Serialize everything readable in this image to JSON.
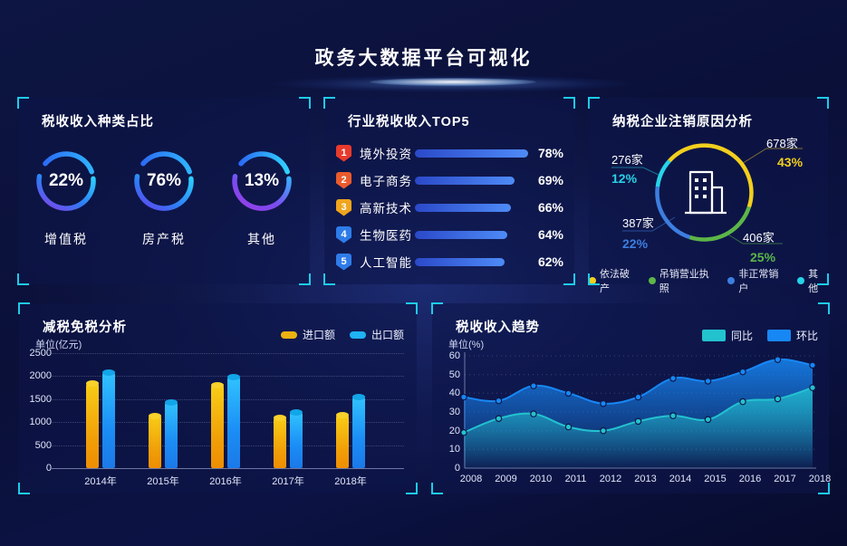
{
  "header": {
    "title": "政务大数据平台可视化"
  },
  "panels": {
    "tax_type": {
      "title": "税收收入种类占比"
    },
    "industry_top5": {
      "title": "行业税收收入TOP5"
    },
    "cancellation": {
      "title": "纳税企业注销原因分析"
    },
    "tax_reduction": {
      "title": "减税免税分析",
      "unit": "单位(亿元)",
      "y_ticks": [
        "2500",
        "2000",
        "1500",
        "1000",
        "500",
        "0"
      ]
    },
    "trend": {
      "title": "税收收入趋势",
      "unit": "单位(%)",
      "y_ticks": [
        "60",
        "50",
        "40",
        "30",
        "20",
        "10",
        "0"
      ]
    }
  },
  "colors": {
    "accent_cyan": "#1ecbe8",
    "ring_blue": "#2c6df5",
    "ring_cyan": "#2bd2ff",
    "ring_purple": "#8a3ce8",
    "bar_gradient_start": "#2b49c9",
    "bar_gradient_end": "#4e8bf7"
  },
  "chart_data": [
    {
      "type": "donut-set",
      "title": "税收收入种类占比",
      "items": [
        {
          "label": "增值税",
          "value": 22,
          "pct_label": "22%"
        },
        {
          "label": "房产税",
          "value": 76,
          "pct_label": "76%"
        },
        {
          "label": "其他",
          "value": 13,
          "pct_label": "13%"
        }
      ]
    },
    {
      "type": "bar",
      "title": "行业税收收入TOP5",
      "items": [
        {
          "rank": "1",
          "label": "境外投资",
          "value": 78,
          "pct_label": "78%",
          "badge_color": "#e93a2c"
        },
        {
          "rank": "2",
          "label": "电子商务",
          "value": 69,
          "pct_label": "69%",
          "badge_color": "#ea5b2d"
        },
        {
          "rank": "3",
          "label": "高新技术",
          "value": 66,
          "pct_label": "66%",
          "badge_color": "#f0a51d"
        },
        {
          "rank": "4",
          "label": "生物医药",
          "value": 64,
          "pct_label": "64%",
          "badge_color": "#2e7ce9"
        },
        {
          "rank": "5",
          "label": "人工智能",
          "value": 62,
          "pct_label": "62%",
          "badge_color": "#2e7ce9"
        }
      ]
    },
    {
      "type": "pie",
      "title": "纳税企业注销原因分析",
      "slices": [
        {
          "label": "依法破产",
          "count_label": "678家",
          "value": 43,
          "pct_label": "43%",
          "color": "#f2cf1e"
        },
        {
          "label": "吊销营业执照",
          "count_label": "406家",
          "value": 25,
          "pct_label": "25%",
          "color": "#5cb648"
        },
        {
          "label": "非正常销户",
          "count_label": "387家",
          "value": 22,
          "pct_label": "22%",
          "color": "#3d7ee0"
        },
        {
          "label": "其他",
          "count_label": "276家",
          "value": 12,
          "pct_label": "12%",
          "color": "#26d4e8"
        }
      ]
    },
    {
      "type": "bar",
      "title": "减税免税分析",
      "ylabel": "单位(亿元)",
      "ylim": [
        0,
        2500
      ],
      "categories": [
        "2014年",
        "2015年",
        "2016年",
        "2017年",
        "2018年"
      ],
      "series": [
        {
          "name": "进口额",
          "color": "#edb211",
          "values": [
            1850,
            1140,
            1820,
            1100,
            1170
          ]
        },
        {
          "name": "出口额",
          "color": "#1fb2f5",
          "values": [
            2090,
            1430,
            1980,
            1230,
            1560
          ]
        }
      ]
    },
    {
      "type": "line",
      "title": "税收收入趋势",
      "ylabel": "单位(%)",
      "ylim": [
        0,
        60
      ],
      "x": [
        "2008",
        "2009",
        "2010",
        "2011",
        "2012",
        "2013",
        "2014",
        "2015",
        "2016",
        "2017",
        "2018"
      ],
      "series": [
        {
          "name": "同比",
          "color": "#23c2cf",
          "values": [
            19,
            26.5,
            29,
            22,
            20,
            25,
            28,
            26,
            35.5,
            37,
            43
          ]
        },
        {
          "name": "环比",
          "color": "#1787f5",
          "values": [
            38,
            36,
            44,
            40,
            34.5,
            38,
            48,
            46.5,
            51.5,
            58,
            55
          ]
        }
      ]
    }
  ]
}
